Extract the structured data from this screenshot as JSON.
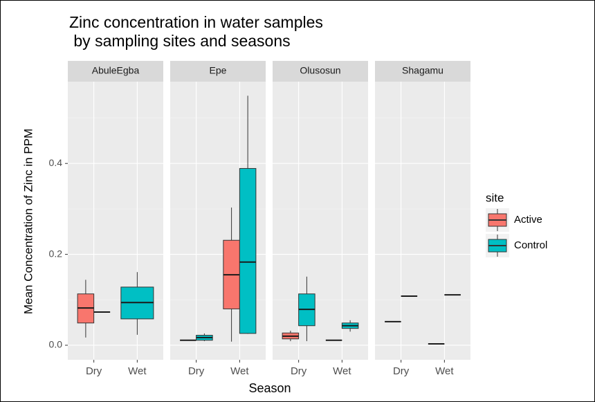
{
  "chart_data": {
    "type": "box",
    "title": [
      "Zinc concentration in water samples",
      " by sampling sites and seasons"
    ],
    "x_label": "Season",
    "y_label": "Mean Concentration of Zinc in PPM",
    "legend_title": "site",
    "series": [
      {
        "name": "Active",
        "color": "#f8766d"
      },
      {
        "name": "Control",
        "color": "#00bfc4"
      }
    ],
    "ylim": [
      -0.032,
      0.58
    ],
    "yticks": [
      {
        "value": 0,
        "label": "0.0"
      },
      {
        "value": 0.2,
        "label": "0.2"
      },
      {
        "value": 0.4,
        "label": "0.4"
      }
    ],
    "y_minor_grid": [
      0.1,
      0.3,
      0.5
    ],
    "grid": true,
    "facets": [
      {
        "name": "AbuleEgba",
        "categories": [
          "Dry",
          "Wet"
        ],
        "values": [
          [
            [
              0.017,
              0.049,
              0.082,
              0.113,
              0.144
            ],
            null
          ],
          [
            [
              0.073,
              0.073,
              0.073,
              0.073,
              0.073
            ],
            [
              0.023,
              0.058,
              0.094,
              0.128,
              0.161
            ]
          ]
        ]
      },
      {
        "name": "Epe",
        "categories": [
          "Dry",
          "Wet"
        ],
        "values": [
          [
            [
              0.011,
              0.011,
              0.011,
              0.011,
              0.011
            ],
            [
              0.008,
              0.08,
              0.155,
              0.231,
              0.303
            ]
          ],
          [
            [
              0.009,
              0.011,
              0.017,
              0.022,
              0.026
            ],
            [
              0.025,
              0.026,
              0.183,
              0.389,
              0.549
            ]
          ]
        ]
      },
      {
        "name": "Olusosun",
        "categories": [
          "Dry",
          "Wet"
        ],
        "values": [
          [
            [
              0.009,
              0.014,
              0.02,
              0.027,
              0.032
            ],
            [
              0.011,
              0.011,
              0.011,
              0.011,
              0.011
            ]
          ],
          [
            [
              0.009,
              0.043,
              0.079,
              0.113,
              0.151
            ],
            [
              0.03,
              0.037,
              0.043,
              0.049,
              0.055
            ]
          ]
        ]
      },
      {
        "name": "Shagamu",
        "categories": [
          "Dry",
          "Wet"
        ],
        "values": [
          [
            [
              0.052,
              0.052,
              0.052,
              0.052,
              0.052
            ],
            [
              0.003,
              0.003,
              0.003,
              0.003,
              0.003
            ]
          ],
          [
            [
              0.108,
              0.108,
              0.108,
              0.108,
              0.108
            ],
            [
              0.111,
              0.111,
              0.111,
              0.111,
              0.111
            ]
          ]
        ]
      }
    ]
  }
}
